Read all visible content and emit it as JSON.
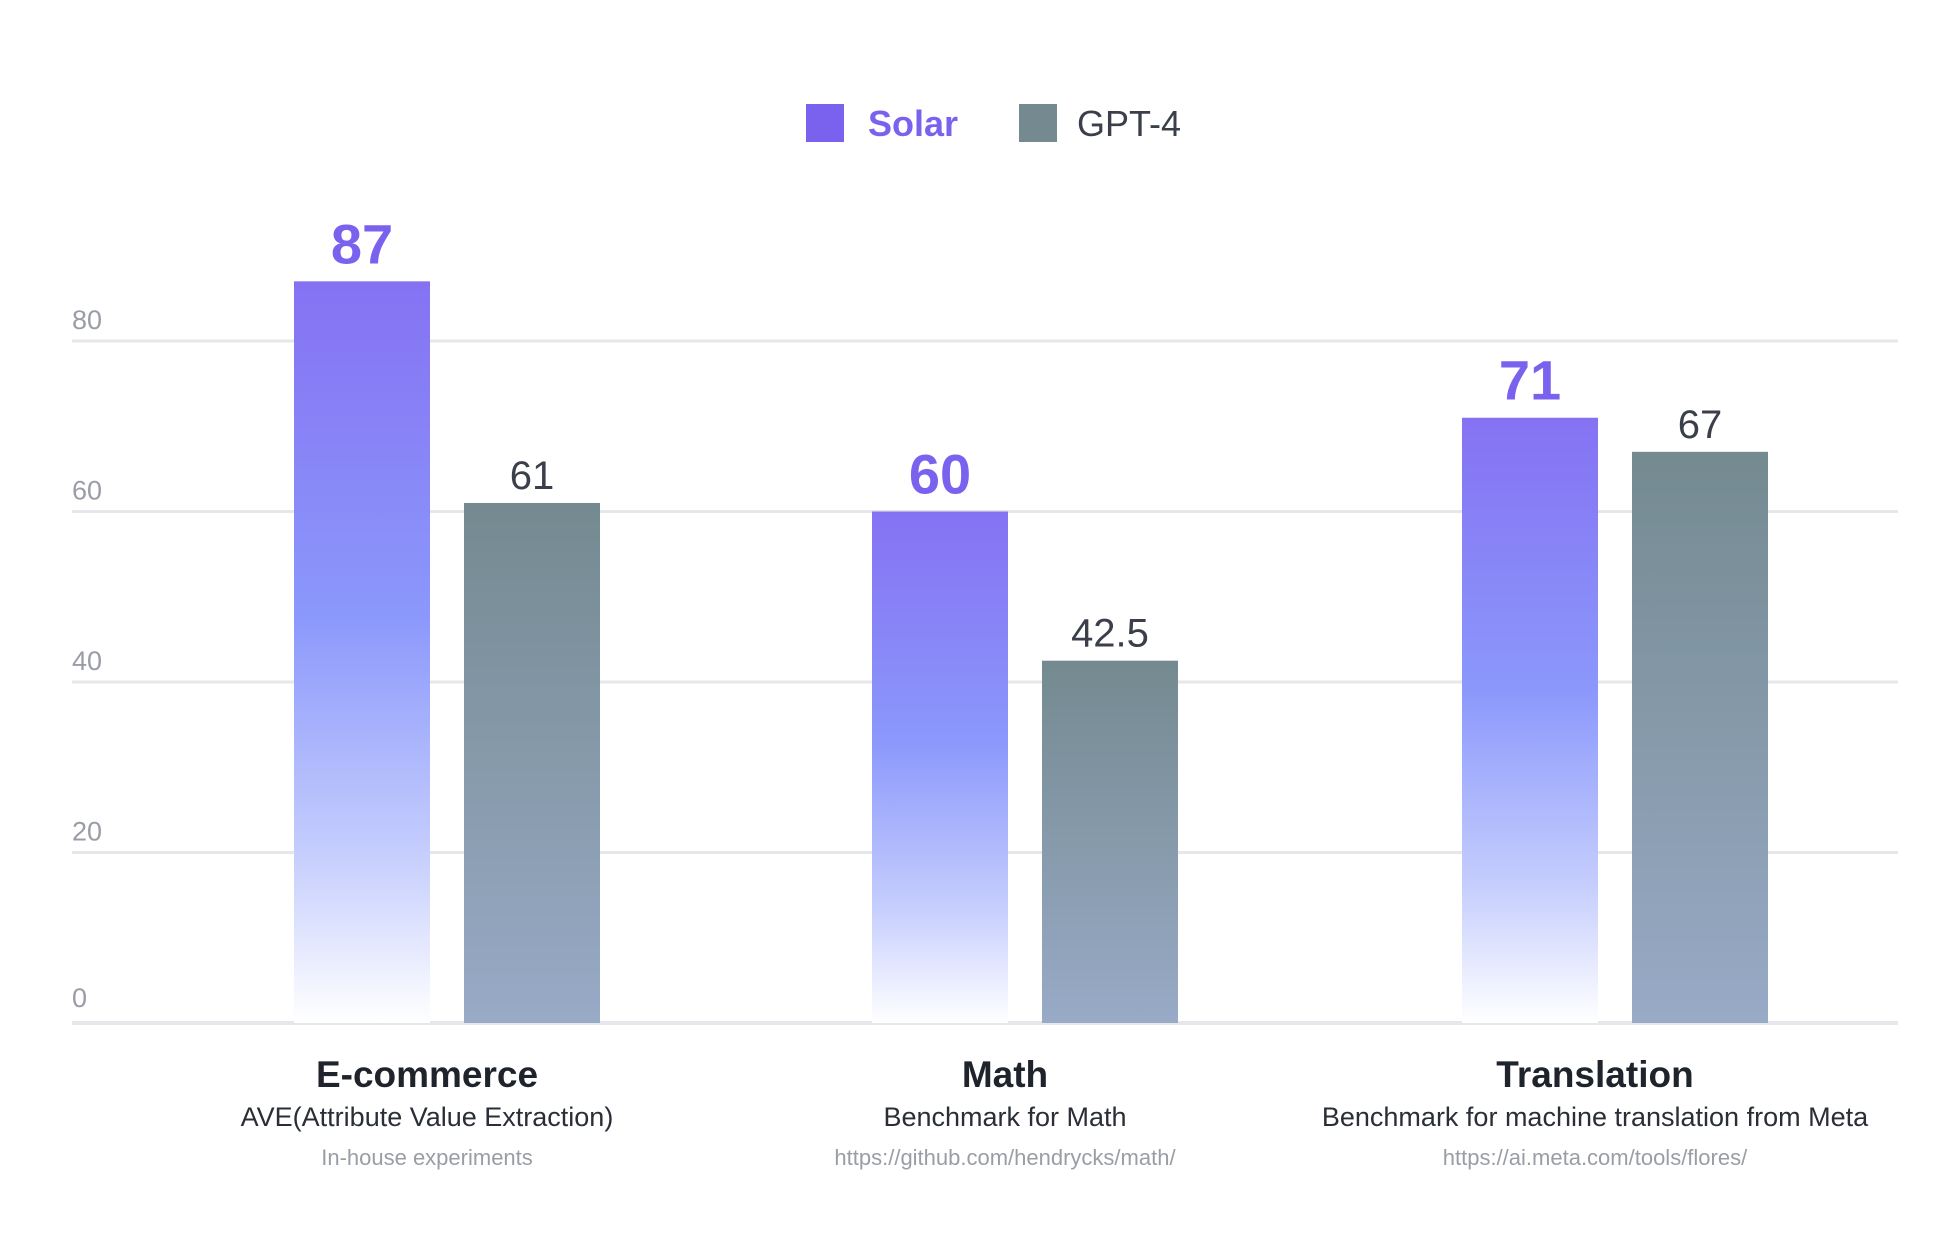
{
  "chart_data": {
    "type": "bar",
    "categories": [
      "E-commerce",
      "Math",
      "Translation"
    ],
    "subtitles": [
      "AVE(Attribute Value Extraction)",
      "Benchmark for Math",
      "Benchmark for machine translation from Meta"
    ],
    "sources": [
      "In-house experiments",
      "https://github.com/hendrycks/math/",
      "https://ai.meta.com/tools/flores/"
    ],
    "series": [
      {
        "name": "Solar",
        "values": [
          87,
          60,
          71
        ],
        "labels": [
          "87",
          "60",
          "71"
        ],
        "color": "#7b62ee"
      },
      {
        "name": "GPT-4",
        "values": [
          61,
          42.5,
          67
        ],
        "labels": [
          "61",
          "42.5",
          "67"
        ],
        "color": "#748a90"
      }
    ],
    "yticks": [
      0,
      20,
      40,
      60,
      80
    ],
    "ylim": [
      0,
      80
    ],
    "grid": true,
    "legend": "top-center",
    "title": "",
    "xlabel": "",
    "ylabel": ""
  }
}
